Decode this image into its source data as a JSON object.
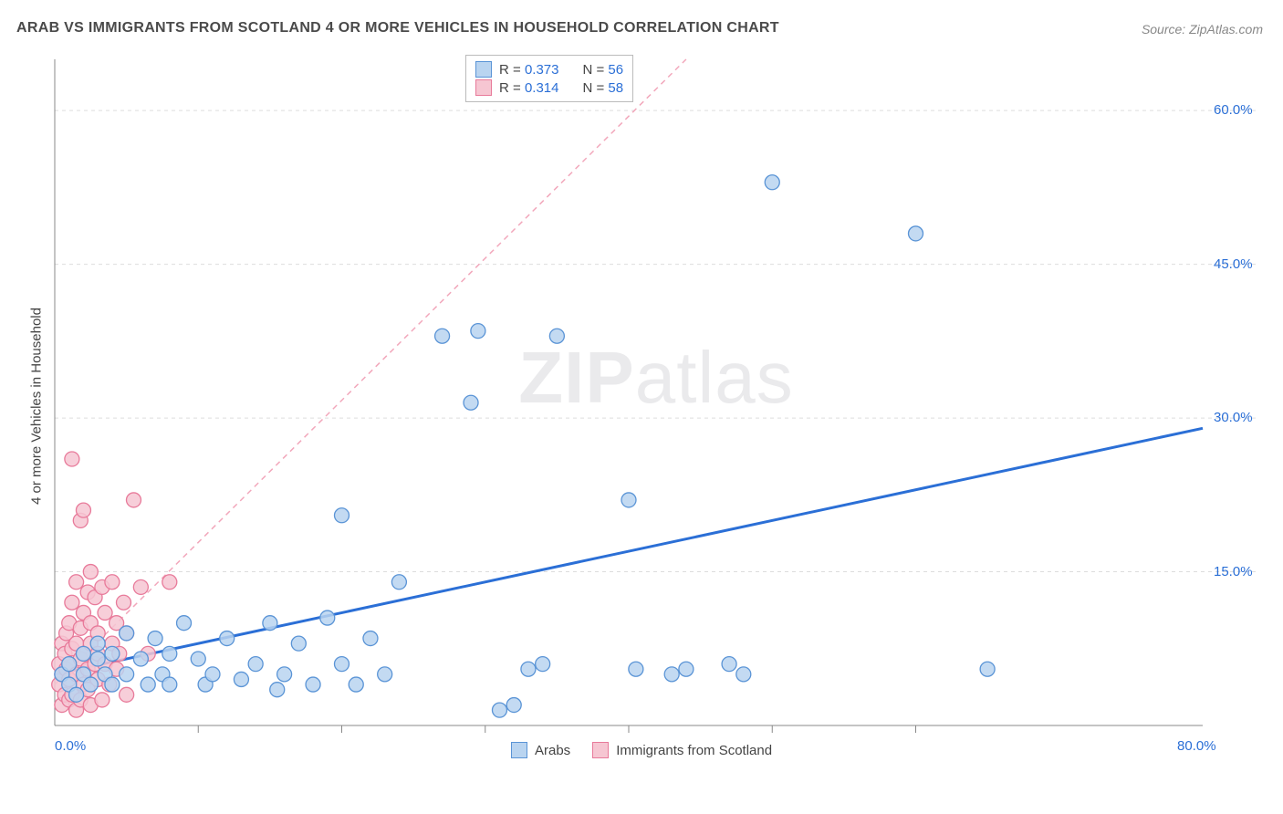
{
  "title": "ARAB VS IMMIGRANTS FROM SCOTLAND 4 OR MORE VEHICLES IN HOUSEHOLD CORRELATION CHART",
  "source": "Source: ZipAtlas.com",
  "ylabel": "4 or more Vehicles in Household",
  "watermark_a": "ZIP",
  "watermark_b": "atlas",
  "chart": {
    "type": "scatter",
    "xlim": [
      0,
      80
    ],
    "ylim": [
      0,
      65
    ],
    "x_ticks": [
      0,
      10,
      20,
      30,
      40,
      50,
      60,
      80
    ],
    "x_tick_labels": {
      "0": "0.0%",
      "80": "80.0%"
    },
    "y_ticks": [
      15,
      30,
      45,
      60
    ],
    "y_tick_labels": {
      "15": "15.0%",
      "30": "30.0%",
      "45": "45.0%",
      "60": "60.0%"
    },
    "grid_color": "#dddddd",
    "grid_dash": "4 4",
    "axis_color": "#888888",
    "background_color": "#ffffff",
    "marker_radius": 8,
    "marker_stroke_width": 1.3,
    "series": [
      {
        "name": "Arabs",
        "label": "Arabs",
        "fill": "#b9d4f0",
        "stroke": "#5a94d6",
        "R": "0.373",
        "N": "56",
        "trend": {
          "x1": 0,
          "y1": 5,
          "x2": 80,
          "y2": 29,
          "color": "#2b6fd6",
          "width": 3,
          "dash": "none"
        },
        "points": [
          [
            0.5,
            5
          ],
          [
            1,
            4
          ],
          [
            1,
            6
          ],
          [
            1.5,
            3
          ],
          [
            2,
            7
          ],
          [
            2,
            5
          ],
          [
            2.5,
            4
          ],
          [
            3,
            6.5
          ],
          [
            3,
            8
          ],
          [
            3.5,
            5
          ],
          [
            4,
            4
          ],
          [
            4,
            7
          ],
          [
            5,
            9
          ],
          [
            5,
            5
          ],
          [
            6,
            6.5
          ],
          [
            6.5,
            4
          ],
          [
            7,
            8.5
          ],
          [
            7.5,
            5
          ],
          [
            8,
            4
          ],
          [
            8,
            7
          ],
          [
            9,
            10
          ],
          [
            10,
            6.5
          ],
          [
            10.5,
            4
          ],
          [
            11,
            5
          ],
          [
            12,
            8.5
          ],
          [
            13,
            4.5
          ],
          [
            14,
            6
          ],
          [
            15,
            10
          ],
          [
            15.5,
            3.5
          ],
          [
            16,
            5
          ],
          [
            17,
            8
          ],
          [
            18,
            4
          ],
          [
            19,
            10.5
          ],
          [
            20,
            6
          ],
          [
            20,
            20.5
          ],
          [
            21,
            4
          ],
          [
            22,
            8.5
          ],
          [
            23,
            5
          ],
          [
            24,
            14
          ],
          [
            27,
            38
          ],
          [
            29,
            31.5
          ],
          [
            29.5,
            38.5
          ],
          [
            31,
            1.5
          ],
          [
            32,
            2
          ],
          [
            33,
            5.5
          ],
          [
            34,
            6
          ],
          [
            35,
            38
          ],
          [
            40,
            22
          ],
          [
            40.5,
            5.5
          ],
          [
            43,
            5
          ],
          [
            44,
            5.5
          ],
          [
            47,
            6
          ],
          [
            48,
            5
          ],
          [
            50,
            53
          ],
          [
            60,
            48
          ],
          [
            65,
            5.5
          ]
        ]
      },
      {
        "name": "Immigrants from Scotland",
        "label": "Immigrants from Scotland",
        "fill": "#f6c6d2",
        "stroke": "#e87a9a",
        "R": "0.314",
        "N": "58",
        "trend": {
          "x1": 0,
          "y1": 4,
          "x2": 44,
          "y2": 65,
          "color": "#f2a7bb",
          "width": 1.5,
          "dash": "6 5"
        },
        "points": [
          [
            0.3,
            4
          ],
          [
            0.3,
            6
          ],
          [
            0.5,
            2
          ],
          [
            0.5,
            5
          ],
          [
            0.5,
            8
          ],
          [
            0.7,
            3
          ],
          [
            0.7,
            7
          ],
          [
            0.8,
            5.5
          ],
          [
            0.8,
            9
          ],
          [
            1,
            2.5
          ],
          [
            1,
            4.5
          ],
          [
            1,
            6
          ],
          [
            1,
            10
          ],
          [
            1.2,
            3
          ],
          [
            1.2,
            7.5
          ],
          [
            1.2,
            12
          ],
          [
            1.2,
            26
          ],
          [
            1.5,
            1.5
          ],
          [
            1.5,
            5
          ],
          [
            1.5,
            8
          ],
          [
            1.5,
            14
          ],
          [
            1.8,
            2.5
          ],
          [
            1.8,
            6.5
          ],
          [
            1.8,
            9.5
          ],
          [
            1.8,
            20
          ],
          [
            2,
            4
          ],
          [
            2,
            7
          ],
          [
            2,
            11
          ],
          [
            2,
            21
          ],
          [
            2.3,
            3.5
          ],
          [
            2.3,
            5.5
          ],
          [
            2.3,
            13
          ],
          [
            2.5,
            2
          ],
          [
            2.5,
            8
          ],
          [
            2.5,
            10
          ],
          [
            2.5,
            15
          ],
          [
            2.8,
            6
          ],
          [
            2.8,
            12.5
          ],
          [
            3,
            4.5
          ],
          [
            3,
            7
          ],
          [
            3,
            9
          ],
          [
            3.3,
            2.5
          ],
          [
            3.3,
            13.5
          ],
          [
            3.5,
            6
          ],
          [
            3.5,
            11
          ],
          [
            3.8,
            4
          ],
          [
            4,
            8
          ],
          [
            4,
            14
          ],
          [
            4.3,
            5.5
          ],
          [
            4.3,
            10
          ],
          [
            4.5,
            7
          ],
          [
            4.8,
            12
          ],
          [
            5,
            3
          ],
          [
            5,
            9
          ],
          [
            5.5,
            22
          ],
          [
            6,
            13.5
          ],
          [
            6.5,
            7
          ],
          [
            8,
            14
          ]
        ]
      }
    ]
  },
  "legend_bottom": {
    "items": [
      {
        "label": "Arabs",
        "fill": "#b9d4f0",
        "stroke": "#5a94d6"
      },
      {
        "label": "Immigrants from Scotland",
        "fill": "#f6c6d2",
        "stroke": "#e87a9a"
      }
    ]
  }
}
